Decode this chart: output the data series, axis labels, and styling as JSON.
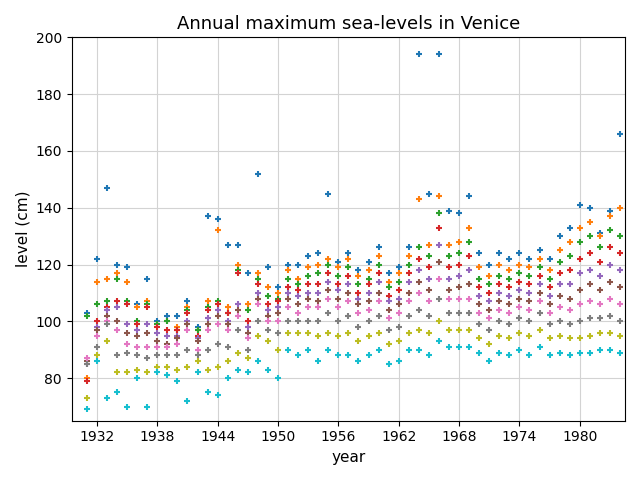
{
  "title": "Annual maximum sea-levels in Venice",
  "xlabel": "year",
  "ylabel": "level (cm)",
  "ylim": [
    65,
    200
  ],
  "xlim": [
    1929.5,
    1984.5
  ],
  "yticks": [
    80,
    100,
    120,
    140,
    160,
    180,
    200
  ],
  "xticks": [
    1932,
    1938,
    1944,
    1950,
    1956,
    1962,
    1968,
    1974,
    1980
  ],
  "colors": [
    "#1f77b4",
    "#ff7f0e",
    "#2ca02c",
    "#d62728",
    "#9467bd",
    "#8c564b",
    "#e377c2",
    "#7f7f7f",
    "#bcbd22",
    "#17becf"
  ],
  "data": {
    "1931": [
      103,
      80,
      102,
      79,
      85,
      86,
      87,
      85,
      73,
      69
    ],
    "1932": [
      122,
      114,
      106,
      100,
      98,
      97,
      95,
      91,
      88,
      86
    ],
    "1933": [
      147,
      115,
      107,
      105,
      104,
      102,
      100,
      99,
      93,
      73
    ],
    "1934": [
      120,
      117,
      115,
      107,
      105,
      100,
      97,
      88,
      82,
      75
    ],
    "1935": [
      119,
      114,
      107,
      106,
      99,
      96,
      92,
      89,
      82,
      70
    ],
    "1936": [
      106,
      105,
      100,
      99,
      97,
      95,
      91,
      88,
      83,
      80
    ],
    "1937": [
      115,
      107,
      106,
      105,
      99,
      96,
      91,
      87,
      82,
      70
    ],
    "1938": [
      100,
      99,
      99,
      98,
      96,
      93,
      91,
      88,
      84,
      82
    ],
    "1939": [
      102,
      100,
      100,
      97,
      95,
      92,
      91,
      88,
      84,
      81
    ],
    "1940": [
      102,
      98,
      97,
      97,
      95,
      94,
      92,
      88,
      83,
      79
    ],
    "1941": [
      107,
      105,
      104,
      103,
      100,
      99,
      97,
      90,
      84,
      72
    ],
    "1942": [
      98,
      97,
      97,
      95,
      94,
      93,
      90,
      88,
      86,
      82
    ],
    "1943": [
      137,
      107,
      105,
      104,
      101,
      99,
      97,
      90,
      83,
      75
    ],
    "1944": [
      136,
      132,
      107,
      106,
      104,
      102,
      99,
      92,
      84,
      74
    ],
    "1945": [
      127,
      105,
      103,
      103,
      100,
      99,
      97,
      91,
      86,
      80
    ],
    "1946": [
      127,
      120,
      118,
      117,
      106,
      104,
      102,
      97,
      89,
      83
    ],
    "1947": [
      117,
      106,
      104,
      100,
      98,
      96,
      94,
      90,
      87,
      82
    ],
    "1948": [
      152,
      117,
      115,
      113,
      110,
      108,
      106,
      100,
      95,
      86
    ],
    "1949": [
      119,
      112,
      109,
      106,
      104,
      102,
      100,
      97,
      93,
      83
    ],
    "1950": [
      112,
      110,
      108,
      107,
      105,
      103,
      100,
      96,
      90,
      80
    ],
    "1951": [
      120,
      118,
      115,
      112,
      110,
      108,
      105,
      100,
      96,
      90
    ],
    "1952": [
      120,
      115,
      113,
      111,
      109,
      106,
      103,
      100,
      96,
      88
    ],
    "1953": [
      123,
      119,
      116,
      113,
      110,
      108,
      105,
      100,
      96,
      90
    ],
    "1954": [
      124,
      120,
      117,
      113,
      110,
      107,
      105,
      100,
      95,
      86
    ],
    "1955": [
      145,
      122,
      120,
      117,
      114,
      111,
      108,
      103,
      96,
      90
    ],
    "1956": [
      121,
      119,
      116,
      113,
      111,
      108,
      105,
      100,
      95,
      88
    ],
    "1957": [
      124,
      122,
      119,
      116,
      113,
      110,
      107,
      102,
      96,
      88
    ],
    "1958": [
      118,
      116,
      113,
      110,
      108,
      106,
      103,
      98,
      93,
      86
    ],
    "1959": [
      121,
      118,
      115,
      113,
      110,
      107,
      104,
      100,
      95,
      88
    ],
    "1960": [
      126,
      123,
      120,
      117,
      114,
      110,
      107,
      102,
      96,
      90
    ],
    "1961": [
      117,
      114,
      112,
      109,
      107,
      104,
      101,
      97,
      92,
      85
    ],
    "1962": [
      119,
      117,
      114,
      111,
      108,
      106,
      103,
      98,
      93,
      86
    ],
    "1963": [
      126,
      123,
      120,
      117,
      114,
      110,
      107,
      102,
      96,
      90
    ],
    "1964": [
      194,
      143,
      126,
      122,
      118,
      114,
      110,
      104,
      97,
      90
    ],
    "1965": [
      145,
      127,
      123,
      119,
      115,
      111,
      107,
      102,
      96,
      88
    ],
    "1966": [
      194,
      144,
      138,
      133,
      127,
      121,
      115,
      108,
      100,
      93
    ],
    "1967": [
      139,
      127,
      123,
      119,
      115,
      111,
      108,
      103,
      97,
      91
    ],
    "1968": [
      138,
      128,
      124,
      120,
      116,
      112,
      108,
      103,
      97,
      91
    ],
    "1969": [
      144,
      133,
      128,
      123,
      118,
      113,
      108,
      103,
      97,
      91
    ],
    "1970": [
      124,
      119,
      115,
      112,
      109,
      106,
      103,
      99,
      94,
      89
    ],
    "1971": [
      120,
      116,
      113,
      110,
      107,
      104,
      101,
      97,
      92,
      86
    ],
    "1972": [
      124,
      120,
      116,
      113,
      110,
      107,
      104,
      100,
      95,
      89
    ],
    "1973": [
      122,
      118,
      115,
      112,
      109,
      106,
      103,
      99,
      94,
      88
    ],
    "1974": [
      124,
      120,
      117,
      114,
      111,
      108,
      105,
      101,
      96,
      90
    ],
    "1975": [
      122,
      119,
      116,
      113,
      110,
      107,
      104,
      100,
      95,
      88
    ],
    "1976": [
      125,
      122,
      119,
      116,
      113,
      110,
      107,
      103,
      97,
      91
    ],
    "1977": [
      122,
      118,
      115,
      112,
      109,
      106,
      103,
      99,
      94,
      88
    ],
    "1978": [
      130,
      125,
      121,
      117,
      113,
      109,
      105,
      100,
      95,
      89
    ],
    "1979": [
      133,
      128,
      123,
      118,
      113,
      108,
      104,
      99,
      94,
      88
    ],
    "1980": [
      141,
      133,
      128,
      122,
      117,
      111,
      106,
      100,
      94,
      89
    ],
    "1981": [
      140,
      135,
      130,
      124,
      118,
      113,
      107,
      101,
      95,
      89
    ],
    "1982": [
      131,
      130,
      126,
      121,
      116,
      111,
      106,
      101,
      96,
      90
    ],
    "1983": [
      139,
      137,
      132,
      126,
      120,
      114,
      108,
      102,
      96,
      90
    ],
    "1984": [
      166,
      140,
      130,
      124,
      118,
      112,
      106,
      100,
      95,
      89
    ]
  }
}
